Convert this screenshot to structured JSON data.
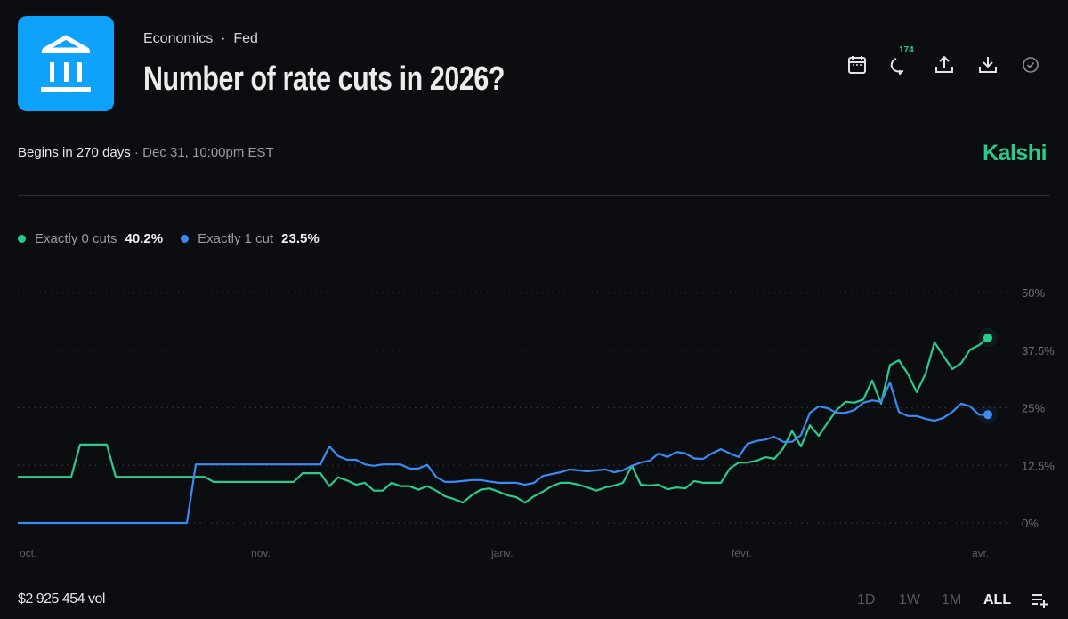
{
  "header": {
    "category": "Economics",
    "subcategory": "Fed",
    "separator": "·",
    "title": "Number of rate cuts in 2026?",
    "icon": "bank-icon",
    "icon_bg": "#0fa2fb",
    "comment_count": "174",
    "tools": [
      "calendar-icon",
      "comment-icon",
      "share-icon",
      "download-icon",
      "check-circle-icon"
    ]
  },
  "status": {
    "begins": "Begins in 270 days",
    "separator": " · ",
    "date": "Dec 31, 10:00pm EST"
  },
  "brand": {
    "name": "Kalshi",
    "color": "#28cc8b"
  },
  "legend": [
    {
      "name": "Exactly 0 cuts",
      "value": "40.2%",
      "color": "#28cc8b"
    },
    {
      "name": "Exactly 1 cut",
      "value": "23.5%",
      "color": "#3b8bf5"
    }
  ],
  "footer": {
    "volume": "$2 925 454 vol",
    "ranges": [
      "1D",
      "1W",
      "1M",
      "ALL"
    ],
    "active_range": "ALL",
    "settings_icon": "list-add-icon"
  },
  "chart_data": {
    "type": "line",
    "title": "",
    "xlabel": "",
    "ylabel": "",
    "ylim": [
      0,
      50
    ],
    "y_ticks": [
      0,
      12.5,
      25,
      37.5,
      50
    ],
    "y_tick_labels": [
      "0%",
      "12.5%",
      "25%",
      "37.5%",
      "50%"
    ],
    "y_axis_side": "right",
    "grid": "horizontal dotted",
    "x_tick_labels": [
      {
        "label": "oct.",
        "index": 0
      },
      {
        "label": "nov.",
        "index": 26
      },
      {
        "label": "janv.",
        "index": 53
      },
      {
        "label": "févr.",
        "index": 80
      },
      {
        "label": "avr.",
        "index": 107
      }
    ],
    "series": [
      {
        "name": "Exactly 0 cuts",
        "color": "#28cc8b",
        "values": [
          10,
          10,
          10,
          10,
          10,
          10,
          10,
          17,
          17,
          17,
          17,
          10,
          10,
          10,
          10,
          10,
          10,
          10,
          10,
          10,
          10,
          10,
          8.9,
          8.9,
          8.9,
          8.9,
          8.9,
          8.9,
          8.9,
          8.9,
          8.9,
          8.9,
          10.8,
          10.8,
          10.8,
          8,
          9.9,
          9.2,
          8.3,
          8.7,
          7,
          7,
          8.7,
          8,
          8,
          7.2,
          8,
          7,
          5.8,
          5.2,
          4.4,
          6,
          7.2,
          7.5,
          6.8,
          6,
          5.6,
          4.4,
          5.8,
          6.8,
          8,
          8.7,
          8.7,
          8.3,
          7.7,
          7,
          7.7,
          8.1,
          8.7,
          12.4,
          8.3,
          8.1,
          8.3,
          7.3,
          7.7,
          7.5,
          9.1,
          8.7,
          8.7,
          8.7,
          11.8,
          13.1,
          13.1,
          13.5,
          14.3,
          13.9,
          16.2,
          20,
          16.6,
          21.2,
          18.9,
          21.8,
          24.5,
          26.3,
          26.1,
          26.8,
          30.9,
          25.9,
          34.3,
          35.3,
          32.4,
          28.4,
          32.4,
          39.2,
          36.3,
          33.4,
          34.7,
          37.6,
          38.6,
          40.2
        ]
      },
      {
        "name": "Exactly 1 cut",
        "color": "#3b8bf5",
        "values": [
          0,
          0,
          0,
          0,
          0,
          0,
          0,
          0,
          0,
          0,
          0,
          0,
          0,
          0,
          0,
          0,
          0,
          0,
          0,
          0,
          12.7,
          12.7,
          12.7,
          12.7,
          12.7,
          12.7,
          12.7,
          12.7,
          12.7,
          12.7,
          12.7,
          12.7,
          12.7,
          12.7,
          12.7,
          16.6,
          14.5,
          13.7,
          13.7,
          12.7,
          12.4,
          12.7,
          12.7,
          12.7,
          11.8,
          11.8,
          12.6,
          10,
          8.9,
          8.9,
          9.1,
          9.3,
          9.3,
          9,
          8.7,
          8.7,
          8.7,
          8.3,
          8.7,
          10.2,
          10.6,
          11,
          11.6,
          11.4,
          11.2,
          11.4,
          11.6,
          11,
          11.4,
          12.4,
          13.1,
          13.5,
          15.1,
          14.3,
          15.4,
          15.1,
          14,
          13.9,
          15.1,
          16,
          15.1,
          14.3,
          17.2,
          17.8,
          18.1,
          18.7,
          17.6,
          17.6,
          19.1,
          23.9,
          25.3,
          24.9,
          23.9,
          23.9,
          24.5,
          26.1,
          26.6,
          26.3,
          30.5,
          24.1,
          23.2,
          23.2,
          22.6,
          22.2,
          22.8,
          24.1,
          25.9,
          25.3,
          23.5,
          23.5
        ]
      }
    ]
  }
}
